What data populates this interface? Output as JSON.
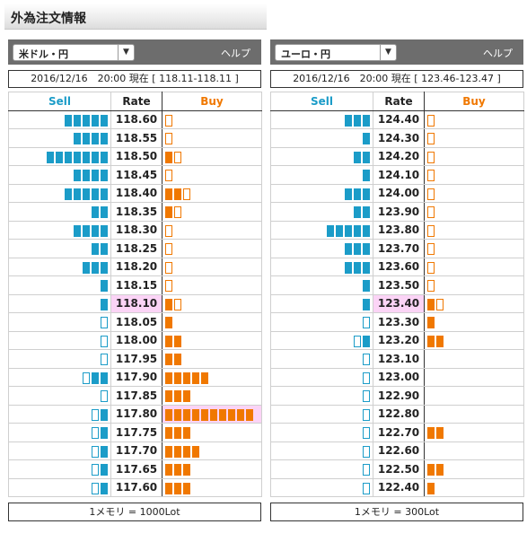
{
  "title": "外為注文情報",
  "panels": [
    {
      "pair": "米ドル・円",
      "help": "ヘルプ",
      "status": "2016/12/16　20:00 現在 [ 118.11-118.11 ]",
      "headers": {
        "sell": "Sell",
        "rate": "Rate",
        "buy": "Buy"
      },
      "footer": "1メモリ = 1000Lot",
      "current_rate": "118.10",
      "rows": [
        {
          "rate": "118.60",
          "sell": 5,
          "buy": 0.5
        },
        {
          "rate": "118.55",
          "sell": 4,
          "buy": 0.5
        },
        {
          "rate": "118.50",
          "sell": 7,
          "buy": 1.5
        },
        {
          "rate": "118.45",
          "sell": 4,
          "buy": 0.5
        },
        {
          "rate": "118.40",
          "sell": 5,
          "buy": 2.5
        },
        {
          "rate": "118.35",
          "sell": 2,
          "buy": 1.5
        },
        {
          "rate": "118.30",
          "sell": 4,
          "buy": 0.5
        },
        {
          "rate": "118.25",
          "sell": 2,
          "buy": 0.5
        },
        {
          "rate": "118.20",
          "sell": 3,
          "buy": 0.5
        },
        {
          "rate": "118.15",
          "sell": 1,
          "buy": 0.5
        },
        {
          "rate": "118.10",
          "sell": 1,
          "buy": 1.5
        },
        {
          "rate": "118.05",
          "sell": 0.5,
          "buy": 1
        },
        {
          "rate": "118.00",
          "sell": 0.5,
          "buy": 2
        },
        {
          "rate": "117.95",
          "sell": 0.5,
          "buy": 2
        },
        {
          "rate": "117.90",
          "sell": 2.5,
          "buy": 5
        },
        {
          "rate": "117.85",
          "sell": 0.5,
          "buy": 3
        },
        {
          "rate": "117.80",
          "sell": 1.5,
          "buy": 10
        },
        {
          "rate": "117.75",
          "sell": 1.5,
          "buy": 3
        },
        {
          "rate": "117.70",
          "sell": 1.5,
          "buy": 4
        },
        {
          "rate": "117.65",
          "sell": 1.5,
          "buy": 3
        },
        {
          "rate": "117.60",
          "sell": 1.5,
          "buy": 3
        }
      ]
    },
    {
      "pair": "ユーロ・円",
      "help": "ヘルプ",
      "status": "2016/12/16　20:00 現在 [ 123.46-123.47 ]",
      "headers": {
        "sell": "Sell",
        "rate": "Rate",
        "buy": "Buy"
      },
      "footer": "1メモリ = 300Lot",
      "current_rate": "123.40",
      "rows": [
        {
          "rate": "124.40",
          "sell": 3,
          "buy": 0.5
        },
        {
          "rate": "124.30",
          "sell": 1,
          "buy": 0.5
        },
        {
          "rate": "124.20",
          "sell": 2,
          "buy": 0.5
        },
        {
          "rate": "124.10",
          "sell": 1,
          "buy": 0.5
        },
        {
          "rate": "124.00",
          "sell": 3,
          "buy": 0.5
        },
        {
          "rate": "123.90",
          "sell": 2,
          "buy": 0.5
        },
        {
          "rate": "123.80",
          "sell": 5,
          "buy": 0.5
        },
        {
          "rate": "123.70",
          "sell": 3,
          "buy": 0.5
        },
        {
          "rate": "123.60",
          "sell": 3,
          "buy": 0.5
        },
        {
          "rate": "123.50",
          "sell": 1,
          "buy": 0.5
        },
        {
          "rate": "123.40",
          "sell": 1,
          "buy": 1.5
        },
        {
          "rate": "123.30",
          "sell": 0.5,
          "buy": 1
        },
        {
          "rate": "123.20",
          "sell": 1.5,
          "buy": 2
        },
        {
          "rate": "123.10",
          "sell": 0.5,
          "buy": 0
        },
        {
          "rate": "123.00",
          "sell": 0.5,
          "buy": 0
        },
        {
          "rate": "122.90",
          "sell": 0.5,
          "buy": 0
        },
        {
          "rate": "122.80",
          "sell": 0.5,
          "buy": 0
        },
        {
          "rate": "122.70",
          "sell": 0.5,
          "buy": 2
        },
        {
          "rate": "122.60",
          "sell": 0.5,
          "buy": 0
        },
        {
          "rate": "122.50",
          "sell": 0.5,
          "buy": 2
        },
        {
          "rate": "122.40",
          "sell": 0.5,
          "buy": 1
        }
      ]
    }
  ],
  "colors": {
    "sell": "#1b9cc8",
    "buy": "#f07800",
    "highlight": "#fbd4f6"
  },
  "icons": [
    "dropdown-arrow-icon"
  ]
}
